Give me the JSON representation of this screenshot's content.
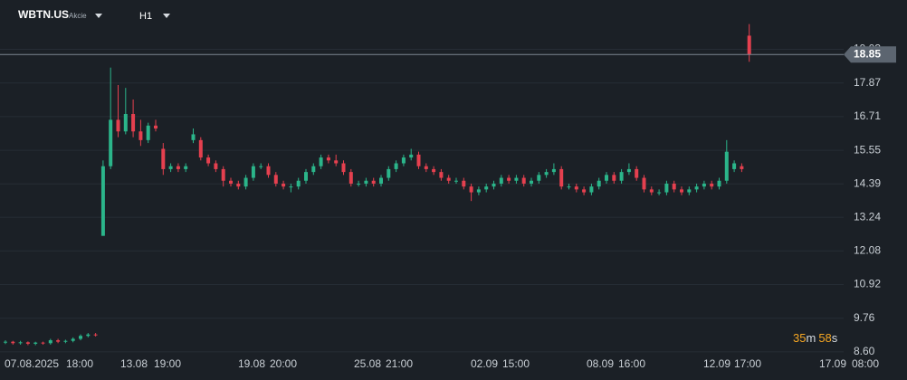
{
  "header": {
    "symbol": "WBTN.US",
    "asset_type": "Akcie",
    "timeframe": "H1"
  },
  "countdown": {
    "minutes": "35",
    "minutes_unit": "m",
    "seconds": "58",
    "seconds_unit": "s"
  },
  "chart_data": {
    "type": "candlestick",
    "ylim": [
      8.41,
      20.73
    ],
    "yticks": [
      {
        "value": 8.6,
        "label": "8.60"
      },
      9.76,
      10.92,
      12.08,
      13.24,
      14.39,
      15.55,
      16.71,
      17.87,
      19.03
    ],
    "grid": true,
    "up_color": "#2bb58a",
    "down_color": "#e5404f",
    "last_price": 18.85,
    "x_labels": [
      "07.08.2025",
      "18:00",
      "13.08",
      "19:00",
      "19.08",
      "20:00",
      "25.08",
      "21:00",
      "02.09",
      "15:00",
      "08.09",
      "16:00",
      "12.09",
      "17:00",
      "17.09",
      "08:00"
    ],
    "open": [
      8.92,
      8.95,
      8.9,
      8.93,
      8.88,
      8.92,
      8.9,
      9.0,
      8.95,
      8.98,
      9.05,
      9.15,
      9.2,
      12.6,
      15.0,
      16.6,
      16.2,
      16.8,
      16.2,
      15.9,
      16.4,
      15.6,
      14.9,
      15.0,
      14.9,
      15.9,
      15.9,
      15.3,
      15.1,
      14.9,
      14.5,
      14.4,
      14.3,
      14.6,
      15.0,
      15.0,
      14.7,
      14.4,
      14.3,
      14.3,
      14.5,
      14.8,
      15.0,
      15.3,
      15.2,
      15.1,
      14.8,
      14.4,
      14.4,
      14.5,
      14.4,
      14.6,
      14.9,
      15.1,
      15.3,
      15.4,
      15.0,
      14.9,
      14.8,
      14.6,
      14.5,
      14.5,
      14.3,
      14.1,
      14.2,
      14.3,
      14.4,
      14.6,
      14.5,
      14.6,
      14.4,
      14.5,
      14.7,
      14.8,
      14.9,
      14.3,
      14.3,
      14.2,
      14.1,
      14.3,
      14.5,
      14.7,
      14.5,
      14.8,
      14.9,
      14.6,
      14.2,
      14.1,
      14.1,
      14.4,
      14.2,
      14.1,
      14.2,
      14.3,
      14.4,
      14.3,
      14.5,
      14.9,
      15.0,
      19.5
    ],
    "high": [
      9.0,
      8.98,
      8.98,
      8.96,
      8.95,
      8.95,
      9.05,
      9.05,
      9.02,
      9.1,
      9.2,
      9.25,
      9.25,
      15.2,
      18.4,
      17.8,
      17.7,
      17.3,
      16.6,
      16.5,
      16.6,
      15.8,
      15.1,
      15.1,
      15.1,
      16.3,
      16.0,
      15.4,
      15.2,
      15.0,
      14.6,
      14.5,
      14.7,
      15.1,
      15.1,
      15.1,
      14.8,
      14.5,
      14.4,
      14.6,
      14.9,
      15.1,
      15.4,
      15.4,
      15.4,
      15.2,
      14.9,
      14.5,
      14.6,
      14.6,
      14.7,
      15.0,
      15.2,
      15.4,
      15.6,
      15.5,
      15.1,
      15.0,
      14.9,
      14.7,
      14.6,
      14.6,
      14.4,
      14.3,
      14.4,
      14.5,
      14.7,
      14.7,
      14.7,
      14.7,
      14.6,
      14.8,
      14.9,
      15.1,
      15.0,
      14.4,
      14.4,
      14.3,
      14.4,
      14.6,
      14.8,
      14.8,
      14.9,
      15.1,
      15.0,
      14.7,
      14.3,
      14.2,
      14.5,
      14.5,
      14.3,
      14.3,
      14.4,
      14.5,
      14.5,
      14.6,
      15.9,
      15.2,
      15.1,
      19.9
    ],
    "low": [
      8.87,
      8.85,
      8.85,
      8.83,
      8.83,
      8.85,
      8.85,
      8.9,
      8.9,
      8.93,
      9.0,
      9.1,
      9.13,
      12.6,
      14.9,
      16.0,
      16.1,
      16.0,
      15.7,
      15.8,
      16.2,
      14.7,
      14.8,
      14.8,
      14.8,
      15.8,
      15.2,
      15.0,
      14.8,
      14.3,
      14.3,
      14.2,
      14.2,
      14.5,
      14.9,
      14.6,
      14.3,
      14.2,
      14.1,
      14.2,
      14.4,
      14.7,
      14.9,
      15.1,
      15.0,
      14.7,
      14.3,
      14.3,
      14.3,
      14.3,
      14.3,
      14.5,
      14.8,
      15.0,
      15.2,
      14.9,
      14.8,
      14.7,
      14.5,
      14.4,
      14.4,
      14.2,
      13.8,
      14.0,
      14.1,
      14.2,
      14.3,
      14.4,
      14.4,
      14.3,
      14.3,
      14.4,
      14.6,
      14.7,
      14.2,
      14.2,
      14.1,
      14.0,
      14.0,
      14.2,
      14.4,
      14.4,
      14.4,
      14.7,
      14.5,
      14.1,
      14.0,
      14.0,
      14.0,
      14.1,
      14.0,
      14.0,
      14.1,
      14.2,
      14.2,
      14.2,
      14.4,
      14.8,
      14.8,
      18.6
    ],
    "close": [
      8.95,
      8.9,
      8.93,
      8.88,
      8.92,
      8.9,
      9.0,
      8.95,
      8.98,
      9.05,
      9.15,
      9.2,
      9.18,
      15.0,
      16.6,
      16.2,
      16.8,
      16.2,
      15.9,
      16.4,
      16.3,
      14.9,
      15.0,
      14.9,
      15.0,
      16.1,
      15.3,
      15.1,
      14.9,
      14.5,
      14.4,
      14.3,
      14.6,
      15.0,
      15.0,
      14.7,
      14.4,
      14.3,
      14.3,
      14.5,
      14.8,
      15.0,
      15.3,
      15.2,
      15.1,
      14.8,
      14.4,
      14.4,
      14.5,
      14.4,
      14.6,
      14.9,
      15.1,
      15.3,
      15.4,
      15.0,
      14.9,
      14.8,
      14.6,
      14.5,
      14.5,
      14.3,
      14.1,
      14.2,
      14.3,
      14.4,
      14.6,
      14.5,
      14.6,
      14.4,
      14.5,
      14.7,
      14.8,
      14.9,
      14.3,
      14.3,
      14.2,
      14.1,
      14.3,
      14.5,
      14.7,
      14.5,
      14.8,
      14.9,
      14.6,
      14.2,
      14.1,
      14.1,
      14.4,
      14.2,
      14.1,
      14.2,
      14.3,
      14.4,
      14.3,
      14.5,
      15.5,
      15.1,
      14.9,
      18.85
    ]
  }
}
